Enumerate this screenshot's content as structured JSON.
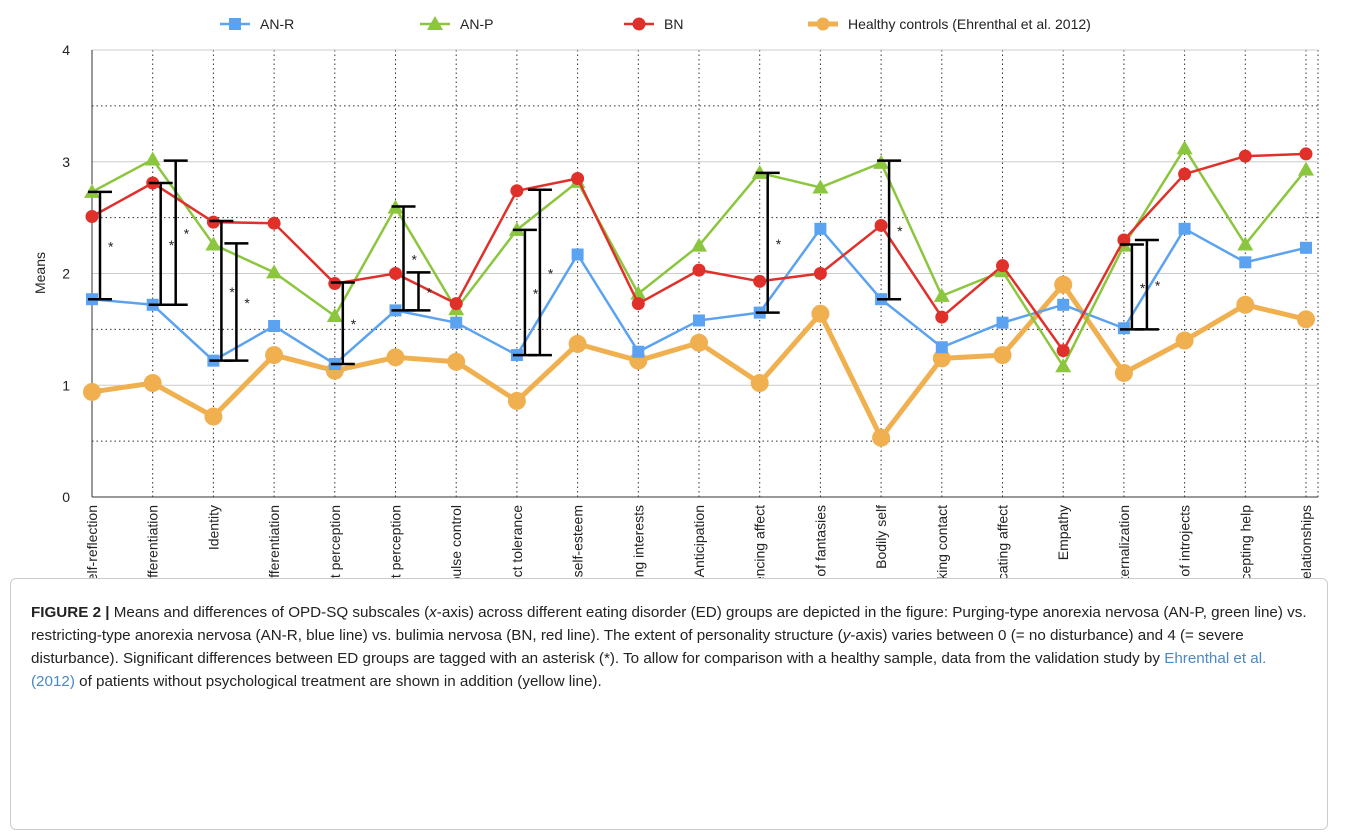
{
  "chart_data": {
    "type": "line",
    "ylabel": "Means",
    "categories": [
      "Self-reflection",
      "Affect differentiation",
      "Identity",
      "Self–object differentiation",
      "Whole object perception",
      "Realistic object perception",
      "Impulse control",
      "Affect tolerance",
      "Regulation of self-esteem",
      "Balancing interests",
      "Anticipation",
      "Experiencing affect",
      "Use of fantasies",
      "Bodily self",
      "Making contact",
      "Communicating affect",
      "Empathy",
      "Internalization",
      "Use of introjects",
      "Accepting help",
      "Detaching from relationships"
    ],
    "series": [
      {
        "name": "AN-R",
        "color": "#5ba3f0",
        "marker": "square",
        "width": 2.5,
        "values": [
          1.77,
          1.72,
          1.22,
          1.53,
          1.19,
          1.67,
          1.56,
          1.27,
          2.17,
          1.3,
          1.58,
          1.65,
          2.4,
          1.77,
          1.34,
          1.56,
          1.72,
          1.51,
          2.4,
          2.1,
          2.23
        ]
      },
      {
        "name": "AN-P",
        "color": "#8cc63f",
        "marker": "triangle",
        "width": 2.5,
        "values": [
          2.73,
          3.02,
          2.26,
          2.01,
          1.62,
          2.59,
          1.68,
          2.39,
          2.82,
          1.82,
          2.25,
          2.9,
          2.77,
          2.99,
          1.8,
          2.02,
          1.17,
          2.25,
          3.12,
          2.26,
          2.93
        ]
      },
      {
        "name": "BN",
        "color": "#e0302a",
        "marker": "circle",
        "width": 2.5,
        "values": [
          2.51,
          2.81,
          2.46,
          2.45,
          1.91,
          2.0,
          1.73,
          2.74,
          2.85,
          1.73,
          2.03,
          1.93,
          2.0,
          2.43,
          1.61,
          2.07,
          1.31,
          2.3,
          2.89,
          3.05,
          3.07
        ]
      },
      {
        "name": "Healthy controls (Ehrenthal et al. 2012)",
        "color": "#f0b050",
        "marker": "big-circle",
        "width": 5,
        "values": [
          0.94,
          1.02,
          0.72,
          1.27,
          1.13,
          1.25,
          1.21,
          0.86,
          1.37,
          1.22,
          1.38,
          1.02,
          1.64,
          0.53,
          1.24,
          1.27,
          1.9,
          1.11,
          1.4,
          1.72,
          1.59
        ]
      }
    ],
    "ylim": [
      0,
      4
    ],
    "yticks": [
      0,
      1,
      2,
      3,
      4
    ],
    "minor_yticks": [
      0.5,
      1.5,
      2.5,
      3.5
    ],
    "grid": true,
    "legend": "top",
    "significance": [
      {
        "category": "Self-reflection",
        "low": 1.77,
        "high": 2.73,
        "label": "*"
      },
      {
        "category": "Affect differentiation",
        "low": 1.72,
        "high": 2.81,
        "label": "*"
      },
      {
        "category": "Affect differentiation",
        "low": 1.72,
        "high": 3.01,
        "label": "*"
      },
      {
        "category": "Identity",
        "low": 1.22,
        "high": 2.47,
        "label": "*"
      },
      {
        "category": "Identity",
        "low": 1.22,
        "high": 2.27,
        "label": "*"
      },
      {
        "category": "Whole object perception",
        "low": 1.19,
        "high": 1.92,
        "label": "*"
      },
      {
        "category": "Realistic object perception",
        "low": 1.67,
        "high": 2.6,
        "label": "*"
      },
      {
        "category": "Realistic object perception",
        "low": 1.67,
        "high": 2.01,
        "label": "*"
      },
      {
        "category": "Affect tolerance",
        "low": 1.27,
        "high": 2.39,
        "label": "*"
      },
      {
        "category": "Affect tolerance",
        "low": 1.27,
        "high": 2.75,
        "label": "*"
      },
      {
        "category": "Experiencing affect",
        "low": 1.65,
        "high": 2.9,
        "label": "*"
      },
      {
        "category": "Bodily self",
        "low": 1.77,
        "high": 3.01,
        "label": "*"
      },
      {
        "category": "Internalization",
        "low": 1.5,
        "high": 2.26,
        "label": "*"
      },
      {
        "category": "Internalization",
        "low": 1.5,
        "high": 2.3,
        "label": "*"
      }
    ]
  },
  "caption": {
    "segments": [
      {
        "text": "FIGURE 2 |",
        "style": "bold"
      },
      {
        "text": " Means and differences of OPD-SQ subscales (",
        "style": "normal"
      },
      {
        "text": "x",
        "style": "italic"
      },
      {
        "text": "-axis) across different eating disorder (ED) groups are depicted in the figure: Purging-type anorexia nervosa (AN-P, green line) vs. restricting-type anorexia nervosa (AN-R, blue line) vs. bulimia nervosa (BN, red line). The extent of personality structure (",
        "style": "normal"
      },
      {
        "text": "y",
        "style": "italic"
      },
      {
        "text": "-axis) varies between 0 (= no disturbance) and 4 (= severe disturbance). Significant differences between ED groups are tagged with an asterisk (*). To allow for comparison with a healthy sample, data from the validation study by ",
        "style": "normal"
      },
      {
        "text": "Ehrenthal et al. (2012)",
        "style": "link"
      },
      {
        "text": " of patients without psychological treatment are shown in addition (yellow line).",
        "style": "normal"
      }
    ]
  }
}
